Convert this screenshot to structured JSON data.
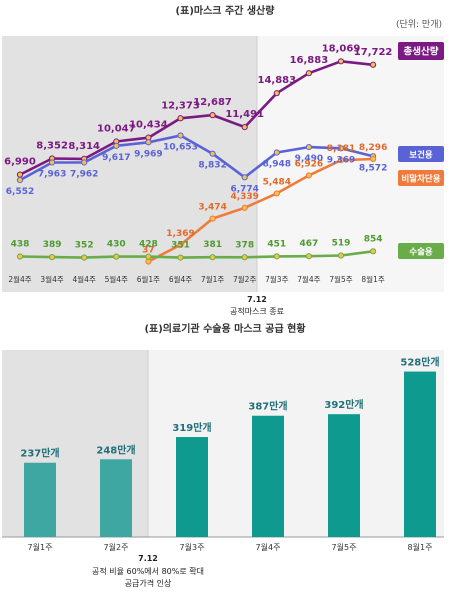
{
  "chart_data": [
    {
      "type": "line",
      "title": "(표)마스크 주간 생산량",
      "unit_note": "(단위: 만개)",
      "categories": [
        "2월4주",
        "3월4주",
        "4월4주",
        "5월4주",
        "6월1주",
        "6월4주",
        "7월1주",
        "7월2주",
        "7월3주",
        "7월4주",
        "7월5주",
        "8월1주"
      ],
      "shaded_until": "7월2주",
      "annotation": {
        "date": "7.12",
        "text": "공적마스크 종료"
      },
      "series": [
        {
          "name": "총생산량",
          "color": "#7b1a82",
          "values": [
            6990,
            8352,
            8314,
            10047,
            10434,
            12373,
            12687,
            11491,
            14883,
            16883,
            18069,
            17722
          ]
        },
        {
          "name": "보건용",
          "color": "#5a63d6",
          "values": [
            6552,
            7963,
            7962,
            9617,
            9969,
            10653,
            8832,
            6774,
            8948,
            9490,
            9369,
            8572
          ]
        },
        {
          "name": "비말차단용",
          "color": "#f07a3c",
          "values": [
            null,
            null,
            null,
            null,
            37,
            1369,
            3474,
            4339,
            5484,
            6926,
            8181,
            8296
          ]
        },
        {
          "name": "수술용",
          "color": "#6aac4a",
          "values": [
            438,
            389,
            352,
            430,
            428,
            351,
            381,
            378,
            451,
            467,
            519,
            854
          ]
        }
      ],
      "value_labels": {
        "총생산량": [
          "6,990",
          "8,352",
          "8,314",
          "10,047",
          "10,434",
          "12,373",
          "12,687",
          "11,491",
          "14,883",
          "16,883",
          "18,069",
          "17,722"
        ],
        "보건용": [
          "6,552",
          "7,963",
          "7,962",
          "9,617",
          "9,969",
          "10,653",
          "8,832",
          "6,774",
          "8,948",
          "9,490",
          "9,369",
          "8,572"
        ],
        "비말차단용": [
          "",
          "",
          "",
          "",
          "37",
          "1,369",
          "3,474",
          "4,339",
          "5,484",
          "6,926",
          "8,181",
          "8,296"
        ],
        "수술용": [
          "438",
          "389",
          "352",
          "430",
          "428",
          "351",
          "381",
          "378",
          "451",
          "467",
          "519",
          "854"
        ]
      },
      "legend": [
        "총생산량",
        "보건용",
        "비말차단용",
        "수술용"
      ]
    },
    {
      "type": "bar",
      "title": "(표)의료기관 수술용 마스크 공급 현황",
      "categories": [
        "7월1주",
        "7월2주",
        "7월3주",
        "7월4주",
        "7월5주",
        "8월1주"
      ],
      "values": [
        237,
        248,
        319,
        387,
        392,
        528
      ],
      "value_labels": [
        "237만개",
        "248만개",
        "319만개",
        "387만개",
        "392만개",
        "528만개"
      ],
      "bar_colors": [
        "#3ea7a2",
        "#3ea7a2",
        "#0f9a90",
        "#0f9a90",
        "#0f9a90",
        "#0f9a90"
      ],
      "shaded_until": "7월2주",
      "annotation": {
        "date": "7.12",
        "lines": [
          "공적 비율 60%에서 80%로 확대",
          "공급가격 인상"
        ]
      }
    }
  ]
}
